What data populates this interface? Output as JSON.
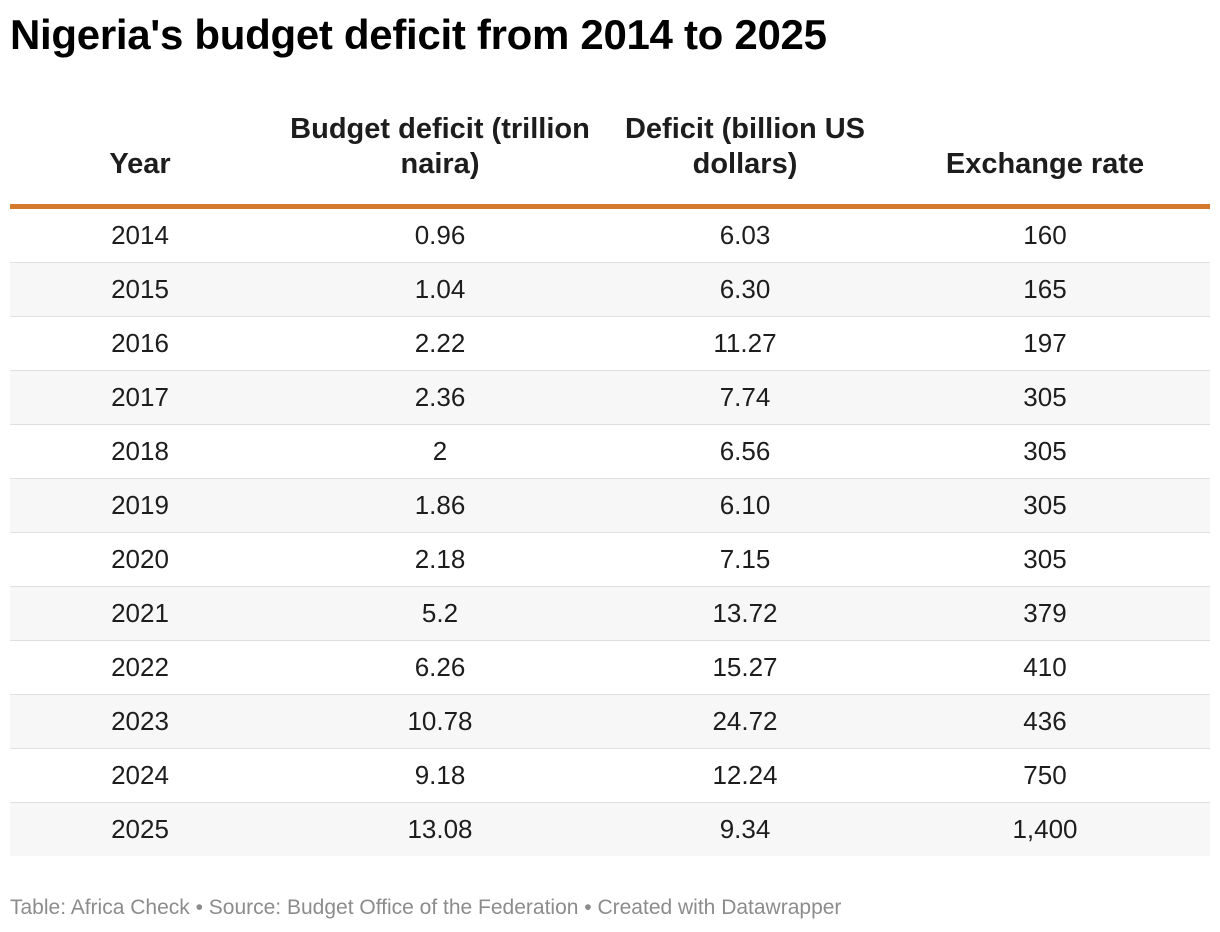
{
  "title": "Nigeria's budget deficit from 2014 to 2025",
  "footer": "Table: Africa Check • Source: Budget Office of the Federation • Created with Datawrapper",
  "colors": {
    "header_rule": "#d57a2b",
    "stripe": "#f7f7f7",
    "footer_text": "#8c8c8c"
  },
  "chart_data": {
    "type": "table",
    "title": "Nigeria's budget deficit from 2014 to 2025",
    "columns": [
      "Year",
      "Budget deficit (trillion naira)",
      "Deficit (billion US dollars)",
      "Exchange rate"
    ],
    "rows": [
      [
        "2014",
        "0.96",
        "6.03",
        "160"
      ],
      [
        "2015",
        "1.04",
        "6.30",
        "165"
      ],
      [
        "2016",
        "2.22",
        "11.27",
        "197"
      ],
      [
        "2017",
        "2.36",
        "7.74",
        "305"
      ],
      [
        "2018",
        "2",
        "6.56",
        "305"
      ],
      [
        "2019",
        "1.86",
        "6.10",
        "305"
      ],
      [
        "2020",
        "2.18",
        "7.15",
        "305"
      ],
      [
        "2021",
        "5.2",
        "13.72",
        "379"
      ],
      [
        "2022",
        "6.26",
        "15.27",
        "410"
      ],
      [
        "2023",
        "10.78",
        "24.72",
        "436"
      ],
      [
        "2024",
        "9.18",
        "12.24",
        "750"
      ],
      [
        "2025",
        "13.08",
        "9.34",
        "1,400"
      ]
    ]
  }
}
